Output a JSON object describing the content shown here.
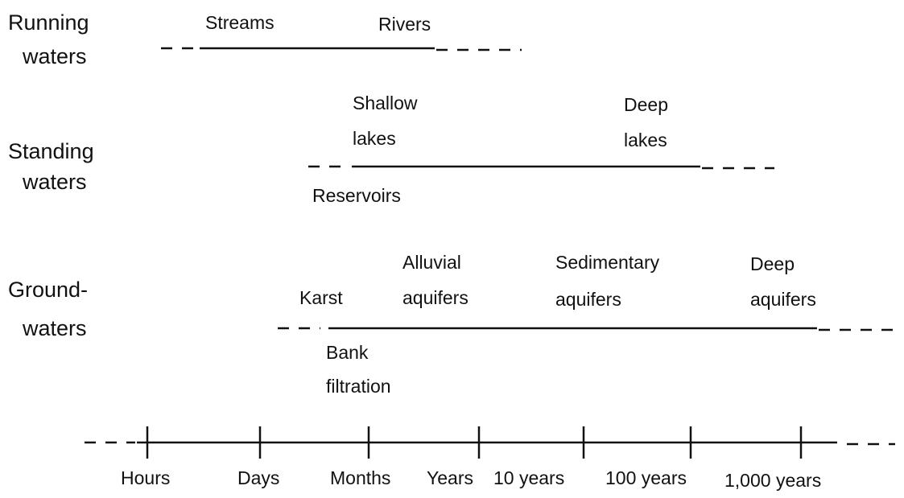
{
  "rows": [
    {
      "label": [
        "Running",
        "waters"
      ],
      "above": [
        [
          "Streams"
        ],
        [
          "Rivers"
        ]
      ]
    },
    {
      "label": [
        "Standing",
        "waters"
      ],
      "above": [
        [
          "Shallow",
          "lakes"
        ],
        [
          "Deep",
          "lakes"
        ]
      ],
      "below": [
        [
          "Reservoirs"
        ]
      ]
    },
    {
      "label": [
        "Ground-",
        "waters"
      ],
      "above": [
        [
          "Karst"
        ],
        [
          "Alluvial",
          "aquifers"
        ],
        [
          "Sedimentary",
          "aquifers"
        ],
        [
          "Deep",
          "aquifers"
        ]
      ],
      "below": [
        [
          "Bank",
          "filtration"
        ]
      ]
    }
  ],
  "axis": {
    "ticks": [
      "Hours",
      "Days",
      "Months",
      "Years",
      "10 years",
      "100 years",
      "1,000 years"
    ]
  }
}
